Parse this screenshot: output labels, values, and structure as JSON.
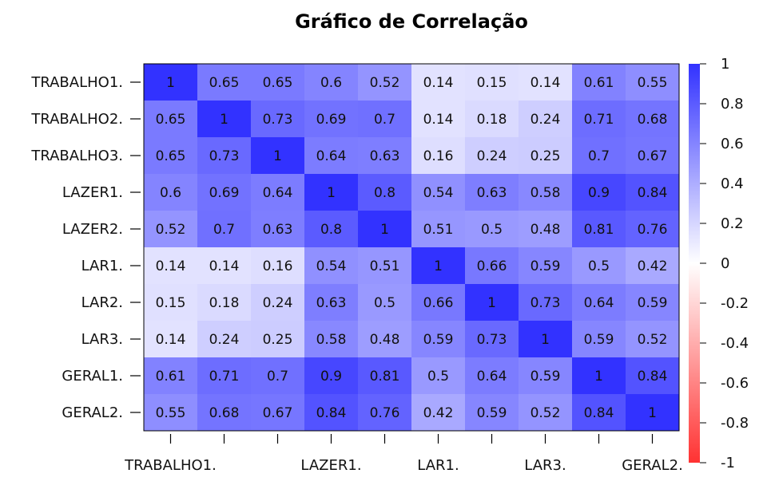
{
  "chart_data": {
    "type": "heatmap",
    "title": "Gráfico de Correlação",
    "rows": [
      "TRABALHO1.",
      "TRABALHO2.",
      "TRABALHO3.",
      "LAZER1.",
      "LAZER2.",
      "LAR1.",
      "LAR2.",
      "LAR3.",
      "GERAL1.",
      "GERAL2."
    ],
    "x_tick_labels": [
      "TRABALHO1.",
      "",
      "",
      "LAZER1.",
      "",
      "LAR1.",
      "",
      "LAR3.",
      "",
      "GERAL2."
    ],
    "values": [
      [
        1,
        0.65,
        0.65,
        0.6,
        0.52,
        0.14,
        0.15,
        0.14,
        0.61,
        0.55
      ],
      [
        0.65,
        1,
        0.73,
        0.69,
        0.7,
        0.14,
        0.18,
        0.24,
        0.71,
        0.68
      ],
      [
        0.65,
        0.73,
        1,
        0.64,
        0.63,
        0.16,
        0.24,
        0.25,
        0.7,
        0.67
      ],
      [
        0.6,
        0.69,
        0.64,
        1,
        0.8,
        0.54,
        0.63,
        0.58,
        0.9,
        0.84
      ],
      [
        0.52,
        0.7,
        0.63,
        0.8,
        1,
        0.51,
        0.5,
        0.48,
        0.81,
        0.76
      ],
      [
        0.14,
        0.14,
        0.16,
        0.54,
        0.51,
        1,
        0.66,
        0.59,
        0.5,
        0.42
      ],
      [
        0.15,
        0.18,
        0.24,
        0.63,
        0.5,
        0.66,
        1,
        0.73,
        0.64,
        0.59
      ],
      [
        0.14,
        0.24,
        0.25,
        0.58,
        0.48,
        0.59,
        0.73,
        1,
        0.59,
        0.52
      ],
      [
        0.61,
        0.71,
        0.7,
        0.9,
        0.81,
        0.5,
        0.64,
        0.59,
        1,
        0.84
      ],
      [
        0.55,
        0.68,
        0.67,
        0.84,
        0.76,
        0.42,
        0.59,
        0.52,
        0.84,
        1
      ]
    ],
    "colorbar": {
      "range": [
        -1,
        1
      ],
      "ticks": [
        1,
        0.8,
        0.6,
        0.4,
        0.2,
        0,
        -0.2,
        -0.4,
        -0.6,
        -0.8,
        -1
      ],
      "tick_labels": [
        "1",
        "0.8",
        "0.6",
        "0.4",
        "0.2",
        "0",
        "-0.2",
        "-0.4",
        "-0.6",
        "-0.8",
        "-1"
      ],
      "colors": {
        "positive": "#3232ff",
        "neutral": "#ffffff",
        "negative": "#ff3232"
      }
    },
    "grid": false
  }
}
